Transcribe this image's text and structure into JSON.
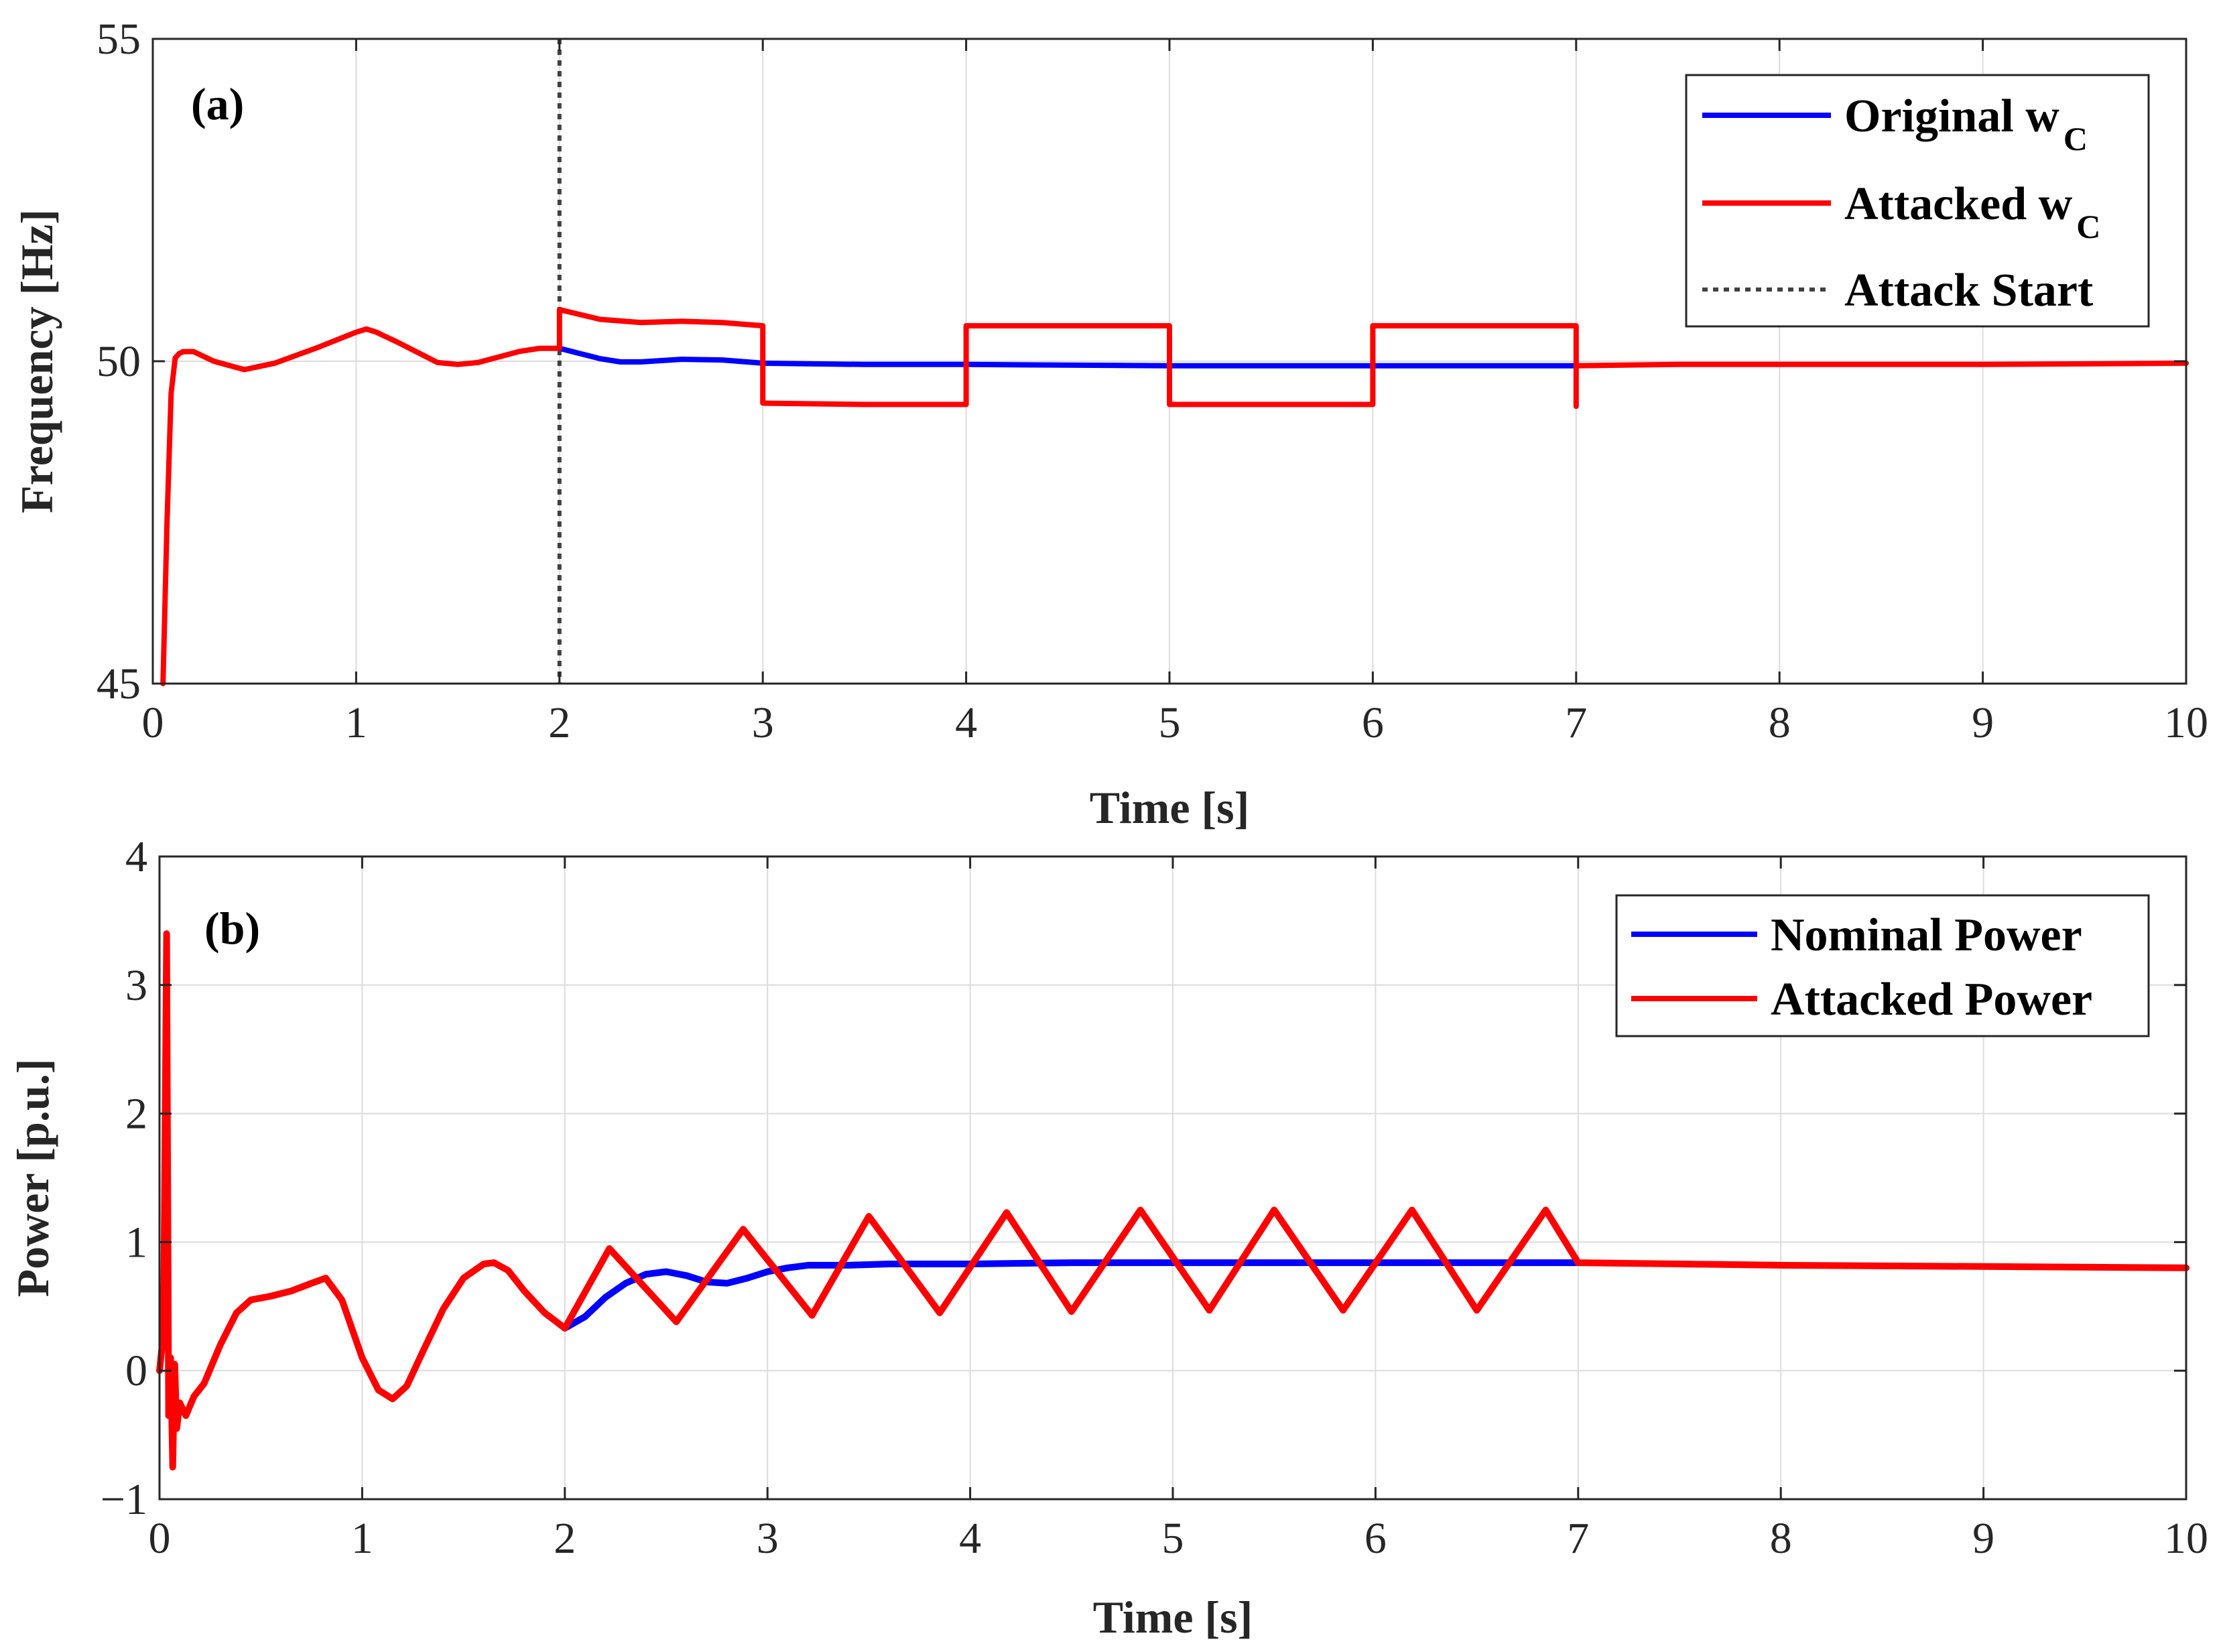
{
  "chart_data": [
    {
      "type": "line",
      "panel_label": "(a)",
      "xlabel": "Time [s]",
      "ylabel": "Frequency [Hz]",
      "xlim": [
        0,
        10
      ],
      "ylim": [
        45,
        55
      ],
      "xticks": [
        0,
        1,
        2,
        3,
        4,
        5,
        6,
        7,
        8,
        9,
        10
      ],
      "yticks": [
        45,
        50,
        55
      ],
      "grid": true,
      "legend_position": "top-right",
      "legend": [
        {
          "name": "Original w",
          "sub": "C",
          "color": "#0000ff",
          "style": "solid"
        },
        {
          "name": "Attacked w",
          "sub": "C",
          "color": "#ff0000",
          "style": "solid"
        },
        {
          "name": "Attack Start",
          "sub": "",
          "color": "#404040",
          "style": "dotted"
        }
      ],
      "series": [
        {
          "name": "Original wC",
          "color": "#0000ff",
          "x": [
            2.0,
            2.1,
            2.2,
            2.3,
            2.4,
            2.6,
            2.8,
            3.0,
            3.5,
            4.0,
            5.0,
            6.0,
            7.0
          ],
          "y": [
            50.2,
            50.12,
            50.04,
            49.99,
            49.99,
            50.03,
            50.02,
            49.97,
            49.95,
            49.95,
            49.93,
            49.93,
            49.93
          ]
        },
        {
          "name": "Attacked wC",
          "color": "#ff0000",
          "x": [
            0.05,
            0.07,
            0.09,
            0.11,
            0.13,
            0.15,
            0.2,
            0.3,
            0.45,
            0.6,
            0.8,
            1.0,
            1.05,
            1.1,
            1.2,
            1.4,
            1.5,
            1.6,
            1.8,
            1.9,
            2.0,
            2.0,
            2.2,
            2.4,
            2.6,
            2.8,
            3.0,
            3.0,
            3.5,
            4.0,
            4.0,
            4.5,
            5.0,
            5.0,
            5.5,
            6.0,
            6.0,
            6.5,
            7.0,
            7.0,
            7.0,
            7.5,
            8.0,
            9.0,
            10.0
          ],
          "y": [
            45.0,
            47.5,
            49.5,
            50.05,
            50.12,
            50.15,
            50.15,
            50.0,
            49.87,
            49.97,
            50.2,
            50.45,
            50.5,
            50.45,
            50.3,
            49.98,
            49.95,
            49.98,
            50.15,
            50.2,
            50.2,
            50.8,
            50.65,
            50.6,
            50.62,
            50.6,
            50.55,
            49.35,
            49.33,
            49.33,
            50.55,
            50.55,
            50.55,
            49.33,
            49.33,
            49.33,
            50.55,
            50.55,
            50.55,
            49.3,
            49.93,
            49.95,
            49.95,
            49.95,
            49.97
          ]
        }
      ],
      "attack_start_x": 2.0
    },
    {
      "type": "line",
      "panel_label": "(b)",
      "xlabel": "Time [s]",
      "ylabel": "Power [p.u.]",
      "xlim": [
        0,
        10
      ],
      "ylim": [
        -1,
        4
      ],
      "xticks": [
        0,
        1,
        2,
        3,
        4,
        5,
        6,
        7,
        8,
        9,
        10
      ],
      "yticks": [
        -1,
        0,
        1,
        2,
        3,
        4
      ],
      "ytick_labels": [
        "−1",
        "0",
        "1",
        "2",
        "3",
        "4"
      ],
      "grid": true,
      "legend_position": "top-right",
      "legend": [
        {
          "name": "Nominal Power",
          "color": "#0000ff",
          "style": "solid"
        },
        {
          "name": "Attacked Power",
          "color": "#ff0000",
          "style": "solid"
        }
      ],
      "series": [
        {
          "name": "Nominal Power",
          "color": "#0000ff",
          "x": [
            2.0,
            2.1,
            2.2,
            2.3,
            2.4,
            2.5,
            2.6,
            2.7,
            2.8,
            2.9,
            3.0,
            3.1,
            3.2,
            3.4,
            3.6,
            4.0,
            4.5,
            5.0,
            5.5,
            6.0,
            6.5,
            7.0
          ],
          "y": [
            0.33,
            0.42,
            0.57,
            0.68,
            0.75,
            0.77,
            0.74,
            0.69,
            0.68,
            0.72,
            0.77,
            0.8,
            0.82,
            0.82,
            0.83,
            0.83,
            0.84,
            0.84,
            0.84,
            0.84,
            0.84,
            0.84
          ]
        },
        {
          "name": "Attacked Power",
          "color": "#ff0000",
          "x": [
            0.0,
            0.02,
            0.035,
            0.045,
            0.055,
            0.065,
            0.075,
            0.085,
            0.1,
            0.13,
            0.17,
            0.22,
            0.3,
            0.38,
            0.45,
            0.55,
            0.65,
            0.75,
            0.82,
            0.9,
            1.0,
            1.08,
            1.15,
            1.22,
            1.3,
            1.4,
            1.5,
            1.6,
            1.65,
            1.72,
            1.8,
            1.9,
            2.0,
            2.22,
            2.55,
            2.88,
            3.22,
            3.5,
            3.85,
            4.18,
            4.5,
            4.84,
            5.18,
            5.5,
            5.84,
            6.18,
            6.5,
            6.84,
            7.0,
            7.5,
            8.0,
            9.0,
            10.0
          ],
          "y": [
            0.0,
            0.3,
            3.4,
            -0.35,
            0.1,
            -0.75,
            0.05,
            -0.45,
            -0.25,
            -0.35,
            -0.2,
            -0.1,
            0.2,
            0.45,
            0.55,
            0.58,
            0.62,
            0.68,
            0.72,
            0.55,
            0.1,
            -0.15,
            -0.22,
            -0.12,
            0.15,
            0.48,
            0.72,
            0.83,
            0.84,
            0.78,
            0.62,
            0.45,
            0.33,
            0.95,
            0.38,
            1.1,
            0.43,
            1.2,
            0.45,
            1.23,
            0.46,
            1.25,
            0.47,
            1.25,
            0.47,
            1.25,
            0.47,
            1.25,
            0.84,
            0.83,
            0.82,
            0.81,
            0.8
          ]
        }
      ]
    }
  ]
}
